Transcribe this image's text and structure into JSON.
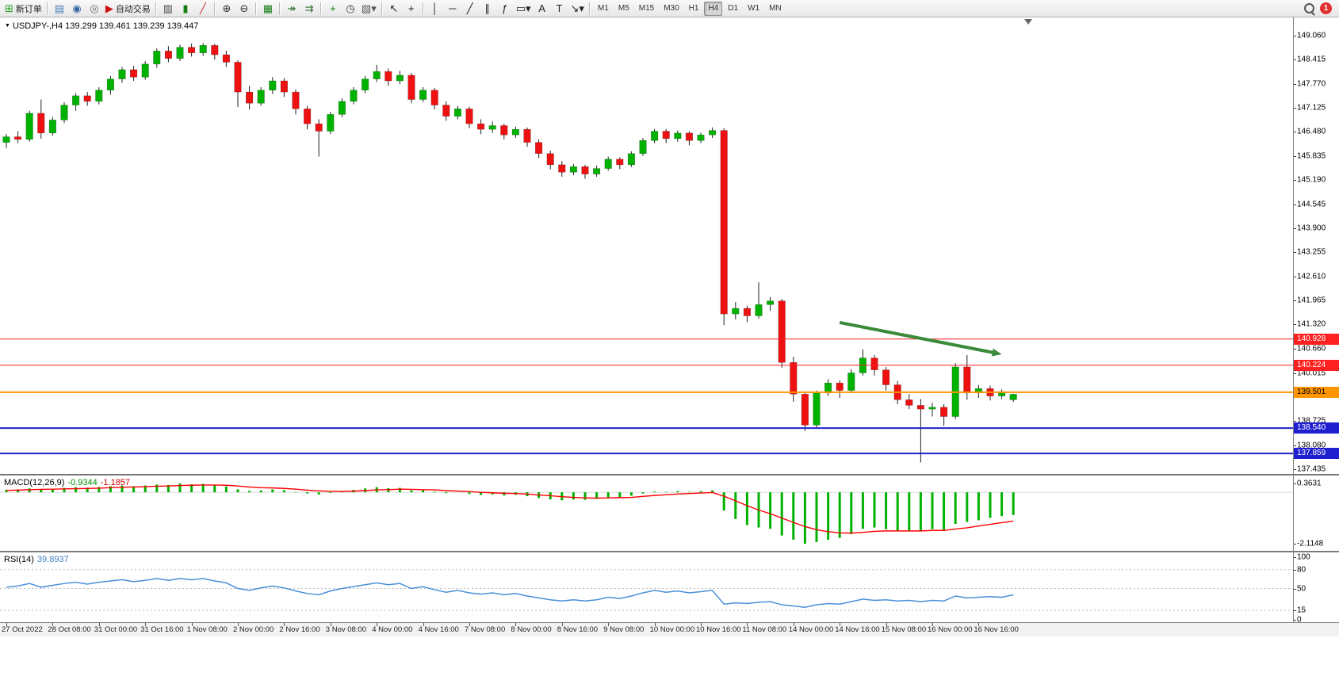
{
  "toolbar": {
    "active_timeframe": "H4",
    "notification_count": "1",
    "groups": [
      [
        {
          "name": "new-order-button",
          "icon_name": "new-order-icon",
          "glyph": "⊞",
          "glyph_color": "#1f9e1f",
          "label": "新订单"
        }
      ],
      [
        {
          "name": "chart-window-icon",
          "glyph": "▤",
          "glyph_color": "#4a7ebb"
        },
        {
          "name": "globe-icon",
          "glyph": "◉",
          "glyph_color": "#3465a4"
        },
        {
          "name": "broadcast-icon",
          "glyph": "◎",
          "glyph_color": "#666666"
        },
        {
          "name": "autotrading-button",
          "icon_name": "autotrading-icon",
          "glyph": "▶",
          "glyph_color": "#cc1111",
          "label": "自动交易"
        }
      ],
      [
        {
          "name": "bar-chart-icon",
          "glyph": "▥",
          "glyph_color": "#444444"
        },
        {
          "name": "candlestick-icon",
          "glyph": "▮",
          "glyph_color": "#178017"
        },
        {
          "name": "line-chart-icon",
          "glyph": "╱",
          "glyph_color": "#bb3333"
        }
      ],
      [
        {
          "name": "zoom-in-icon",
          "glyph": "⊕",
          "glyph_color": "#333333"
        },
        {
          "name": "zoom-out-icon",
          "glyph": "⊖",
          "glyph_color": "#333333"
        }
      ],
      [
        {
          "name": "tile-windows-icon",
          "glyph": "▦",
          "glyph_color": "#178017"
        }
      ],
      [
        {
          "name": "auto-scroll-icon",
          "glyph": "↠",
          "glyph_color": "#2e6e2e"
        },
        {
          "name": "chart-shift-icon",
          "glyph": "⇉",
          "glyph_color": "#2e6e2e"
        }
      ],
      [
        {
          "name": "new-chart-icon",
          "glyph": "+",
          "glyph_color": "#178017"
        },
        {
          "name": "clock-icon",
          "glyph": "◷",
          "glyph_color": "#333333"
        },
        {
          "name": "templates-icon",
          "glyph": "▧▾",
          "glyph_color": "#555555"
        }
      ],
      [
        {
          "name": "cursor-icon",
          "glyph": "↖",
          "glyph_color": "#222222"
        },
        {
          "name": "crosshair-icon",
          "glyph": "+",
          "glyph_color": "#222222"
        }
      ],
      [
        {
          "name": "vertical-line-icon",
          "glyph": "│",
          "glyph_color": "#222222"
        },
        {
          "name": "horizontal-line-icon",
          "glyph": "─",
          "glyph_color": "#222222"
        },
        {
          "name": "trendline-icon",
          "glyph": "╱",
          "glyph_color": "#222222"
        },
        {
          "name": "channel-icon",
          "glyph": "∥",
          "glyph_color": "#222222"
        },
        {
          "name": "fibonacci-icon",
          "glyph": "ƒ",
          "glyph_color": "#222222"
        },
        {
          "name": "shapes-icon",
          "glyph": "▭▾",
          "glyph_color": "#222222"
        },
        {
          "name": "text-icon",
          "glyph": "A",
          "glyph_color": "#222222"
        },
        {
          "name": "label-icon",
          "glyph": "T",
          "glyph_color": "#222222"
        },
        {
          "name": "arrows-icon",
          "glyph": "↘▾",
          "glyph_color": "#222222"
        }
      ],
      [
        {
          "name": "tf-m1",
          "label": "M1",
          "tf": true
        },
        {
          "name": "tf-m5",
          "label": "M5",
          "tf": true
        },
        {
          "name": "tf-m15",
          "label": "M15",
          "tf": true
        },
        {
          "name": "tf-m30",
          "label": "M30",
          "tf": true
        },
        {
          "name": "tf-h1",
          "label": "H1",
          "tf": true
        },
        {
          "name": "tf-h4",
          "label": "H4",
          "tf": true
        },
        {
          "name": "tf-d1",
          "label": "D1",
          "tf": true
        },
        {
          "name": "tf-w1",
          "label": "W1",
          "tf": true
        },
        {
          "name": "tf-mn",
          "label": "MN",
          "tf": true
        }
      ]
    ]
  },
  "chart": {
    "marker": "▼",
    "symbol_label": "USDJPY-,H4",
    "ohlc": "139.299 139.461 139.239 139.447"
  },
  "colors": {
    "bull": "#00B200",
    "bear": "#EE1111",
    "wick": "#222222",
    "line_red": "#FF2020",
    "line_orange": "#FF9500",
    "line_blue": "#1F1FD0",
    "arrow": "#3a8a3a",
    "macd_hist": "#00B200",
    "macd_signal": "#FF0000",
    "rsi_line": "#4a90d9"
  },
  "chart_data": [
    {
      "type": "candlestick",
      "title": "USDJPY-,H4",
      "timeframe": "H4",
      "ohlc_current": {
        "open": 139.299,
        "high": 139.461,
        "low": 139.239,
        "close": 139.447
      },
      "ylim": [
        137.435,
        149.06
      ],
      "y_ticks": [
        "149.060",
        "148.415",
        "147.770",
        "147.125",
        "146.480",
        "145.835",
        "145.190",
        "144.545",
        "143.900",
        "143.255",
        "142.610",
        "141.965",
        "141.320",
        "140.660",
        "140.015",
        "138.725",
        "138.080",
        "137.435"
      ],
      "label_every_n_bars": 4,
      "x_labels": [
        "27 Oct 2022",
        "28 Oct 08:00",
        "31 Oct 00:00",
        "31 Oct 16:00",
        "1 Nov 08:00",
        "2 Nov 00:00",
        "2 Nov 16:00",
        "3 Nov 08:00",
        "4 Nov 00:00",
        "4 Nov 16:00",
        "7 Nov 08:00",
        "8 Nov 00:00",
        "8 Nov 16:00",
        "9 Nov 08:00",
        "10 Nov 00:00",
        "10 Nov 16:00",
        "11 Nov 08:00",
        "14 Nov 00:00",
        "14 Nov 16:00",
        "15 Nov 08:00",
        "16 Nov 00:00",
        "16 Nov 16:00"
      ],
      "candles": [
        [
          146.2,
          146.42,
          146.05,
          146.35
        ],
        [
          146.35,
          146.5,
          146.18,
          146.28
        ],
        [
          146.28,
          147.05,
          146.22,
          146.98
        ],
        [
          146.98,
          147.35,
          146.3,
          146.45
        ],
        [
          146.45,
          146.88,
          146.38,
          146.8
        ],
        [
          146.8,
          147.28,
          146.72,
          147.2
        ],
        [
          147.2,
          147.52,
          147.05,
          147.45
        ],
        [
          147.45,
          147.55,
          147.18,
          147.3
        ],
        [
          147.3,
          147.68,
          147.22,
          147.6
        ],
        [
          147.6,
          147.98,
          147.48,
          147.9
        ],
        [
          147.9,
          148.22,
          147.8,
          148.15
        ],
        [
          148.15,
          148.25,
          147.85,
          147.95
        ],
        [
          147.95,
          148.38,
          147.88,
          148.3
        ],
        [
          148.3,
          148.72,
          148.2,
          148.65
        ],
        [
          148.65,
          148.78,
          148.35,
          148.45
        ],
        [
          148.45,
          148.82,
          148.38,
          148.75
        ],
        [
          148.75,
          148.85,
          148.5,
          148.6
        ],
        [
          148.6,
          148.86,
          148.52,
          148.8
        ],
        [
          148.8,
          148.84,
          148.42,
          148.55
        ],
        [
          148.55,
          148.66,
          148.22,
          148.35
        ],
        [
          148.35,
          148.4,
          147.15,
          147.55
        ],
        [
          147.55,
          147.72,
          147.08,
          147.25
        ],
        [
          147.25,
          147.68,
          147.18,
          147.6
        ],
        [
          147.6,
          147.95,
          147.5,
          147.85
        ],
        [
          147.85,
          147.92,
          147.42,
          147.55
        ],
        [
          147.55,
          147.62,
          146.95,
          147.1
        ],
        [
          147.1,
          147.18,
          146.55,
          146.7
        ],
        [
          146.7,
          146.82,
          145.82,
          146.5
        ],
        [
          146.5,
          147.02,
          146.42,
          146.95
        ],
        [
          146.95,
          147.38,
          146.88,
          147.3
        ],
        [
          147.3,
          147.68,
          147.22,
          147.6
        ],
        [
          147.6,
          147.98,
          147.52,
          147.9
        ],
        [
          147.9,
          148.28,
          147.82,
          148.1
        ],
        [
          148.1,
          148.18,
          147.72,
          147.85
        ],
        [
          147.85,
          148.12,
          147.76,
          148.0
        ],
        [
          148.0,
          148.06,
          147.25,
          147.35
        ],
        [
          147.35,
          147.68,
          147.28,
          147.6
        ],
        [
          147.6,
          147.66,
          147.08,
          147.2
        ],
        [
          147.2,
          147.3,
          146.78,
          146.9
        ],
        [
          146.9,
          147.18,
          146.82,
          147.1
        ],
        [
          147.1,
          147.16,
          146.58,
          146.7
        ],
        [
          146.7,
          146.82,
          146.42,
          146.55
        ],
        [
          146.55,
          146.76,
          146.45,
          146.65
        ],
        [
          146.65,
          146.7,
          146.28,
          146.4
        ],
        [
          146.4,
          146.62,
          146.32,
          146.55
        ],
        [
          146.55,
          146.6,
          146.08,
          146.2
        ],
        [
          146.2,
          146.28,
          145.78,
          145.9
        ],
        [
          145.9,
          145.98,
          145.48,
          145.6
        ],
        [
          145.6,
          145.7,
          145.28,
          145.4
        ],
        [
          145.4,
          145.62,
          145.32,
          145.55
        ],
        [
          145.55,
          145.6,
          145.22,
          145.35
        ],
        [
          145.35,
          145.58,
          145.28,
          145.5
        ],
        [
          145.5,
          145.82,
          145.44,
          145.75
        ],
        [
          145.75,
          145.8,
          145.48,
          145.6
        ],
        [
          145.6,
          145.96,
          145.54,
          145.9
        ],
        [
          145.9,
          146.32,
          145.84,
          146.25
        ],
        [
          146.25,
          146.56,
          146.18,
          146.5
        ],
        [
          146.5,
          146.56,
          146.18,
          146.3
        ],
        [
          146.3,
          146.52,
          146.22,
          146.45
        ],
        [
          146.45,
          146.5,
          146.12,
          146.25
        ],
        [
          146.25,
          146.46,
          146.18,
          146.4
        ],
        [
          146.4,
          146.6,
          146.32,
          146.52
        ],
        [
          146.52,
          146.58,
          141.3,
          141.6
        ],
        [
          141.6,
          141.92,
          141.45,
          141.75
        ],
        [
          141.75,
          141.82,
          141.38,
          141.55
        ],
        [
          141.55,
          142.45,
          141.48,
          141.85
        ],
        [
          141.85,
          142.05,
          141.68,
          141.95
        ],
        [
          141.95,
          142.0,
          140.15,
          140.3
        ],
        [
          140.3,
          140.45,
          139.25,
          139.45
        ],
        [
          139.45,
          139.5,
          138.46,
          138.62
        ],
        [
          138.62,
          139.55,
          138.55,
          139.48
        ],
        [
          139.48,
          139.85,
          139.4,
          139.75
        ],
        [
          139.75,
          139.82,
          139.35,
          139.55
        ],
        [
          139.55,
          140.12,
          139.48,
          140.02
        ],
        [
          140.02,
          140.65,
          139.95,
          140.42
        ],
        [
          140.42,
          140.5,
          139.95,
          140.1
        ],
        [
          140.1,
          140.18,
          139.55,
          139.7
        ],
        [
          139.7,
          139.8,
          139.18,
          139.3
        ],
        [
          139.3,
          139.45,
          139.05,
          139.15
        ],
        [
          139.15,
          139.32,
          137.62,
          139.05
        ],
        [
          139.05,
          139.22,
          138.85,
          139.1
        ],
        [
          139.1,
          139.18,
          138.6,
          138.85
        ],
        [
          138.85,
          140.28,
          138.78,
          140.18
        ],
        [
          140.18,
          140.5,
          139.3,
          139.48
        ],
        [
          139.48,
          139.7,
          139.35,
          139.6
        ],
        [
          139.6,
          139.68,
          139.28,
          139.4
        ],
        [
          139.4,
          139.58,
          139.32,
          139.52
        ],
        [
          139.299,
          139.461,
          139.239,
          139.447
        ]
      ],
      "hlines": [
        {
          "price": 140.928,
          "label": "140.928",
          "color": "#FF2020",
          "width": 1
        },
        {
          "price": 140.224,
          "label": "140.224",
          "color": "#FF2020",
          "width": 1
        },
        {
          "price": 139.501,
          "label": "139.501",
          "color": "#FF9500",
          "width": 2,
          "text_color": "#000000"
        },
        {
          "price": 138.54,
          "label": "138.540",
          "color": "#1F1FD0",
          "width": 2
        },
        {
          "price": 137.859,
          "label": "137.859",
          "color": "#1F1FD0",
          "width": 2
        }
      ],
      "arrow": {
        "from_bar": 72,
        "from_price": 141.37,
        "to_bar": 86,
        "to_price": 140.52,
        "color": "#3a8a3a"
      }
    },
    {
      "type": "bar",
      "name": "MACD",
      "label": "MACD(12,26,9)",
      "value_main": "-0.9344",
      "value_signal": "-1.1857",
      "y_ticks": [
        "0.3631",
        "-2.1148"
      ],
      "ylim": [
        -2.1148,
        0.3631
      ],
      "hist_color": "#00B200",
      "signal_color": "#FF0000",
      "hist": [
        0.1,
        0.12,
        0.16,
        0.13,
        0.15,
        0.18,
        0.21,
        0.19,
        0.22,
        0.25,
        0.28,
        0.25,
        0.28,
        0.32,
        0.3,
        0.3631,
        0.33,
        0.35,
        0.3,
        0.24,
        0.12,
        0.06,
        0.08,
        0.12,
        0.09,
        0.02,
        -0.05,
        -0.09,
        -0.03,
        0.04,
        0.1,
        0.16,
        0.21,
        0.17,
        0.18,
        0.08,
        0.1,
        0.03,
        -0.04,
        0.0,
        -0.07,
        -0.11,
        -0.09,
        -0.13,
        -0.1,
        -0.16,
        -0.23,
        -0.29,
        -0.33,
        -0.3,
        -0.31,
        -0.27,
        -0.21,
        -0.2,
        -0.14,
        -0.05,
        0.03,
        0.02,
        0.05,
        0.02,
        0.05,
        0.08,
        -0.75,
        -1.1,
        -1.35,
        -1.45,
        -1.5,
        -1.78,
        -1.95,
        -2.1148,
        -2.05,
        -1.95,
        -1.88,
        -1.72,
        -1.5,
        -1.45,
        -1.52,
        -1.58,
        -1.6,
        -1.58,
        -1.52,
        -1.55,
        -1.3,
        -1.22,
        -1.15,
        -1.05,
        -0.98,
        -0.9344
      ],
      "signal": [
        0.08,
        0.09,
        0.11,
        0.12,
        0.13,
        0.14,
        0.15,
        0.16,
        0.17,
        0.19,
        0.21,
        0.22,
        0.23,
        0.25,
        0.26,
        0.28,
        0.29,
        0.3,
        0.3,
        0.29,
        0.26,
        0.22,
        0.19,
        0.18,
        0.16,
        0.13,
        0.09,
        0.06,
        0.04,
        0.04,
        0.05,
        0.07,
        0.1,
        0.11,
        0.13,
        0.12,
        0.11,
        0.1,
        0.07,
        0.05,
        0.03,
        0.0,
        -0.02,
        -0.04,
        -0.05,
        -0.07,
        -0.11,
        -0.14,
        -0.18,
        -0.21,
        -0.23,
        -0.24,
        -0.23,
        -0.22,
        -0.21,
        -0.17,
        -0.13,
        -0.1,
        -0.07,
        -0.05,
        -0.03,
        -0.01,
        -0.16,
        -0.35,
        -0.55,
        -0.73,
        -0.88,
        -1.06,
        -1.24,
        -1.41,
        -1.54,
        -1.62,
        -1.67,
        -1.68,
        -1.65,
        -1.61,
        -1.59,
        -1.59,
        -1.59,
        -1.59,
        -1.57,
        -1.57,
        -1.51,
        -1.46,
        -1.39,
        -1.32,
        -1.25,
        -1.1857
      ]
    },
    {
      "type": "line",
      "name": "RSI",
      "label": "RSI(14)",
      "value": "39.8937",
      "y_ticks": [
        "100",
        "80",
        "50",
        "15",
        "0"
      ],
      "levels": [
        80,
        50,
        15
      ],
      "ylim": [
        0,
        100
      ],
      "line_color": "#4a90d9",
      "values": [
        52,
        54,
        58,
        52,
        55,
        58,
        60,
        57,
        60,
        62,
        64,
        61,
        63,
        66,
        63,
        66,
        64,
        66,
        62,
        59,
        50,
        47,
        51,
        54,
        51,
        46,
        42,
        40,
        46,
        50,
        53,
        56,
        59,
        56,
        58,
        50,
        53,
        48,
        44,
        47,
        43,
        41,
        43,
        40,
        42,
        38,
        35,
        32,
        30,
        32,
        30,
        32,
        36,
        34,
        38,
        43,
        47,
        44,
        46,
        43,
        45,
        47,
        25,
        27,
        26,
        28,
        29,
        24,
        22,
        20,
        24,
        26,
        25,
        29,
        33,
        31,
        32,
        30,
        31,
        29,
        31,
        30,
        38,
        35,
        36,
        37,
        36,
        39.89
      ]
    }
  ]
}
